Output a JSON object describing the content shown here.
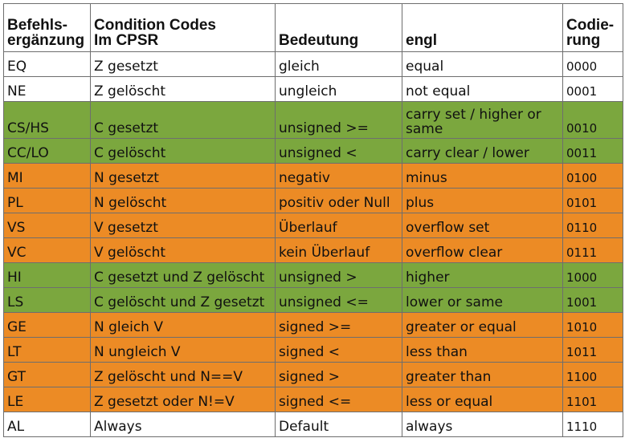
{
  "table": {
    "headers": {
      "col1_line1": "Befehls-",
      "col1_line2": "ergänzung",
      "col2_line1": "Condition Codes",
      "col2_line2": "Im CPSR",
      "col3": "Bedeutung",
      "col4": "engl",
      "col5_line1": "Codie-",
      "col5_line2": "rung"
    },
    "colors": {
      "white": "#ffffff",
      "green": "#7ba73e",
      "orange": "#ec8b25"
    },
    "rows": [
      {
        "suffix": "EQ",
        "condition": "Z gesetzt",
        "meaning": "gleich",
        "english": "equal",
        "code": "0000",
        "color": "white"
      },
      {
        "suffix": "NE",
        "condition": "Z gelöscht",
        "meaning": "ungleich",
        "english": "not equal",
        "code": "0001",
        "color": "white"
      },
      {
        "suffix": "CS/HS",
        "condition": "C gesetzt",
        "meaning": "unsigned >=",
        "english": "carry set / higher or same",
        "code": "0010",
        "color": "green"
      },
      {
        "suffix": "CC/LO",
        "condition": "C gelöscht",
        "meaning": "unsigned <",
        "english": "carry clear / lower",
        "code": "0011",
        "color": "green"
      },
      {
        "suffix": "MI",
        "condition": "N gesetzt",
        "meaning": "negativ",
        "english": "minus",
        "code": "0100",
        "color": "orange"
      },
      {
        "suffix": "PL",
        "condition": "N gelöscht",
        "meaning": "positiv oder Null",
        "english": "plus",
        "code": "0101",
        "color": "orange"
      },
      {
        "suffix": "VS",
        "condition": "V gesetzt",
        "meaning": "Überlauf",
        "english": "overflow set",
        "code": "0110",
        "color": "orange"
      },
      {
        "suffix": "VC",
        "condition": "V gelöscht",
        "meaning": "kein Überlauf",
        "english": "overflow clear",
        "code": "0111",
        "color": "orange"
      },
      {
        "suffix": "HI",
        "condition": "C gesetzt und Z gelöscht",
        "meaning": "unsigned >",
        "english": "higher",
        "code": "1000",
        "color": "green"
      },
      {
        "suffix": "LS",
        "condition": "C gelöscht und Z gesetzt",
        "meaning": "unsigned <=",
        "english": "lower or same",
        "code": "1001",
        "color": "green"
      },
      {
        "suffix": "GE",
        "condition": "N gleich V",
        "meaning": "signed >=",
        "english": "greater or equal",
        "code": "1010",
        "color": "orange"
      },
      {
        "suffix": "LT",
        "condition": "N ungleich V",
        "meaning": "signed <",
        "english": "less than",
        "code": "1011",
        "color": "orange"
      },
      {
        "suffix": "GT",
        "condition": "Z gelöscht und N==V",
        "meaning": "signed >",
        "english": "greater than",
        "code": "1100",
        "color": "orange"
      },
      {
        "suffix": "LE",
        "condition": "Z gesetzt oder N!=V",
        "meaning": "signed <=",
        "english": "less or equal",
        "code": "1101",
        "color": "orange"
      },
      {
        "suffix": "AL",
        "condition": "Always",
        "meaning": "Default",
        "english": "always",
        "code": "1110",
        "color": "white"
      }
    ]
  }
}
